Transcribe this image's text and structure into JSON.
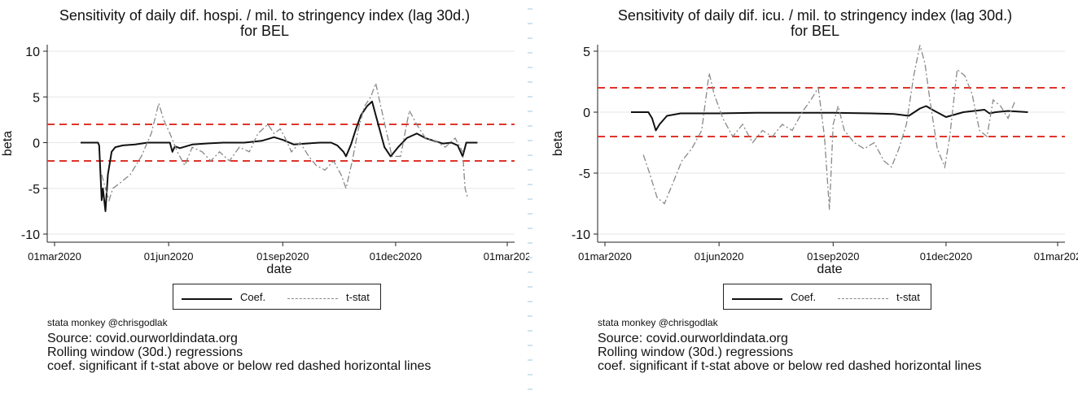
{
  "credit": "stata monkey @chrisgodlak",
  "notes": [
    "Source: covid.ourworldindata.org",
    "Rolling window (30d.) regressions",
    "coef. significant if t-stat above or below red dashed horizontal lines"
  ],
  "legend": {
    "coef": "Coef.",
    "tstat": "t-stat"
  },
  "colors": {
    "coef": "#111111",
    "tstat": "#888888",
    "threshold": "#e0342a",
    "grid": "#e6e6e6"
  },
  "chart_data": [
    {
      "type": "line",
      "title": "Sensitivity of daily dif. hospi. / mil. to stringency index (lag 30d.)",
      "subtitle": "for BEL",
      "xlabel": "date",
      "ylabel": "beta",
      "xlim": [
        "2020-03-01",
        "2021-03-01"
      ],
      "ylim": [
        -10,
        10
      ],
      "yticks": [
        10,
        5,
        0,
        -5,
        -10
      ],
      "xticks": [
        "01mar2020",
        "01jun2020",
        "01sep2020",
        "01dec2020",
        "01mar202"
      ],
      "thresholds": [
        2,
        -2
      ],
      "legend_position": "bottom",
      "grid": true,
      "series": [
        {
          "name": "Coef.",
          "x": [
            "2020-03-22",
            "2020-04-05",
            "2020-04-06",
            "2020-04-08",
            "2020-04-09",
            "2020-04-11",
            "2020-04-13",
            "2020-04-16",
            "2020-04-19",
            "2020-04-25",
            "2020-05-05",
            "2020-05-15",
            "2020-05-20",
            "2020-05-25",
            "2020-06-02",
            "2020-06-04",
            "2020-06-06",
            "2020-06-10",
            "2020-06-20",
            "2020-07-01",
            "2020-07-15",
            "2020-08-01",
            "2020-08-15",
            "2020-08-25",
            "2020-09-01",
            "2020-09-10",
            "2020-09-20",
            "2020-10-01",
            "2020-10-10",
            "2020-10-15",
            "2020-10-20",
            "2020-10-22",
            "2020-10-26",
            "2020-10-30",
            "2020-11-03",
            "2020-11-08",
            "2020-11-12",
            "2020-11-15",
            "2020-11-18",
            "2020-11-22",
            "2020-11-27",
            "2020-12-03",
            "2020-12-10",
            "2020-12-18",
            "2020-12-25",
            "2021-01-01",
            "2021-01-08",
            "2021-01-15",
            "2021-01-20",
            "2021-01-24",
            "2021-01-27",
            "2021-02-05"
          ],
          "values": [
            0,
            0,
            -0.3,
            -6.3,
            -5.0,
            -7.5,
            -3.5,
            -1.0,
            -0.5,
            -0.3,
            -0.2,
            0,
            0,
            0,
            0,
            -1.0,
            -0.4,
            -0.6,
            -0.2,
            -0.1,
            0,
            0,
            0.2,
            0.6,
            0.3,
            -0.2,
            -0.1,
            0,
            0,
            -0.3,
            -1.0,
            -1.5,
            -0.2,
            1.5,
            3.0,
            4.0,
            4.5,
            3.0,
            1.5,
            -0.5,
            -1.5,
            -0.5,
            0.5,
            1.0,
            0.5,
            0.2,
            -0.1,
            0,
            -0.3,
            -1.5,
            0,
            0
          ]
        },
        {
          "name": "t-stat",
          "x": [
            "2020-04-08",
            "2020-04-11",
            "2020-04-14",
            "2020-04-17",
            "2020-04-22",
            "2020-05-01",
            "2020-05-10",
            "2020-05-18",
            "2020-05-24",
            "2020-05-28",
            "2020-06-02",
            "2020-06-08",
            "2020-06-14",
            "2020-06-20",
            "2020-06-28",
            "2020-07-05",
            "2020-07-12",
            "2020-07-20",
            "2020-07-28",
            "2020-08-05",
            "2020-08-12",
            "2020-08-20",
            "2020-08-25",
            "2020-08-30",
            "2020-09-03",
            "2020-09-08",
            "2020-09-15",
            "2020-09-22",
            "2020-09-28",
            "2020-10-05",
            "2020-10-12",
            "2020-10-18",
            "2020-10-22",
            "2020-10-27",
            "2020-11-01",
            "2020-11-06",
            "2020-11-11",
            "2020-11-15",
            "2020-11-19",
            "2020-11-24",
            "2020-11-28",
            "2020-12-05",
            "2020-12-12",
            "2020-12-18",
            "2020-12-25",
            "2021-01-02",
            "2021-01-10",
            "2021-01-18",
            "2021-01-24",
            "2021-01-26",
            "2021-01-28"
          ],
          "values": [
            -3.5,
            -5.0,
            -6.3,
            -5.0,
            -4.5,
            -3.5,
            -1.5,
            1.0,
            4.3,
            2.5,
            1.0,
            -1.0,
            -2.5,
            -0.5,
            -1.0,
            -2.0,
            -1.0,
            -2.0,
            -0.5,
            -1.0,
            1.0,
            2.0,
            1.0,
            1.5,
            0.5,
            -1.0,
            0,
            -1.5,
            -2.5,
            -3.0,
            -2.0,
            -3.5,
            -5.0,
            -2.0,
            1.5,
            4.0,
            5.0,
            6.5,
            4.0,
            1.0,
            -1.5,
            -1.5,
            3.5,
            2.0,
            0.5,
            0.2,
            -0.5,
            0.5,
            -1.0,
            -5.0,
            -6.0
          ]
        }
      ]
    },
    {
      "type": "line",
      "title": "Sensitivity of daily dif. icu. / mil. to stringency index (lag 30d.)",
      "subtitle": "for BEL",
      "xlabel": "date",
      "ylabel": "beta",
      "xlim": [
        "2020-03-01",
        "2021-03-01"
      ],
      "ylim": [
        -10,
        5
      ],
      "yticks": [
        5,
        0,
        -5,
        -10
      ],
      "xticks": [
        "01mar2020",
        "01jun2020",
        "01sep2020",
        "01dec2020",
        "01mar202"
      ],
      "thresholds": [
        2,
        -2
      ],
      "legend_position": "bottom",
      "grid": true,
      "series": [
        {
          "name": "Coef.",
          "x": [
            "2020-03-22",
            "2020-04-05",
            "2020-04-08",
            "2020-04-11",
            "2020-04-14",
            "2020-04-20",
            "2020-05-01",
            "2020-06-01",
            "2020-07-01",
            "2020-08-01",
            "2020-09-01",
            "2020-10-01",
            "2020-10-20",
            "2020-11-01",
            "2020-11-10",
            "2020-11-15",
            "2020-11-20",
            "2020-12-01",
            "2020-12-15",
            "2021-01-01",
            "2021-01-05",
            "2021-01-10",
            "2021-01-20",
            "2021-02-05"
          ],
          "values": [
            0,
            0,
            -0.5,
            -1.5,
            -1.0,
            -0.3,
            -0.1,
            -0.1,
            -0.05,
            -0.05,
            -0.05,
            -0.1,
            -0.15,
            -0.3,
            0.3,
            0.5,
            0.2,
            -0.4,
            0,
            0.2,
            -0.1,
            0,
            0.1,
            0
          ]
        },
        {
          "name": "t-stat",
          "x": [
            "2020-04-01",
            "2020-04-06",
            "2020-04-12",
            "2020-04-18",
            "2020-04-24",
            "2020-05-02",
            "2020-05-10",
            "2020-05-18",
            "2020-05-24",
            "2020-05-28",
            "2020-06-04",
            "2020-06-12",
            "2020-06-20",
            "2020-06-28",
            "2020-07-06",
            "2020-07-14",
            "2020-07-22",
            "2020-07-30",
            "2020-08-07",
            "2020-08-14",
            "2020-08-20",
            "2020-08-25",
            "2020-08-29",
            "2020-09-01",
            "2020-09-05",
            "2020-09-10",
            "2020-09-18",
            "2020-09-26",
            "2020-10-04",
            "2020-10-12",
            "2020-10-18",
            "2020-10-24",
            "2020-10-30",
            "2020-11-05",
            "2020-11-10",
            "2020-11-14",
            "2020-11-18",
            "2020-11-24",
            "2020-11-30",
            "2020-12-04",
            "2020-12-10",
            "2020-12-16",
            "2020-12-22",
            "2020-12-28",
            "2021-01-03",
            "2021-01-08",
            "2021-01-14",
            "2021-01-20",
            "2021-01-26"
          ],
          "values": [
            -3.5,
            -5.0,
            -7.0,
            -7.5,
            -6.0,
            -4.0,
            -3.0,
            -1.5,
            3.2,
            1.5,
            -0.5,
            -2.0,
            -1.0,
            -2.5,
            -1.5,
            -2.0,
            -1.0,
            -1.5,
            0,
            1.0,
            2.0,
            -2.0,
            -8.0,
            -1.0,
            0.5,
            -1.5,
            -2.5,
            -3.0,
            -2.5,
            -4.0,
            -4.5,
            -3.0,
            -1.0,
            3.0,
            5.5,
            4.0,
            1.0,
            -3.0,
            -4.5,
            -2.0,
            3.5,
            3.0,
            1.5,
            -1.5,
            -2.0,
            1.0,
            0.5,
            -0.5,
            1.0
          ]
        }
      ]
    }
  ]
}
